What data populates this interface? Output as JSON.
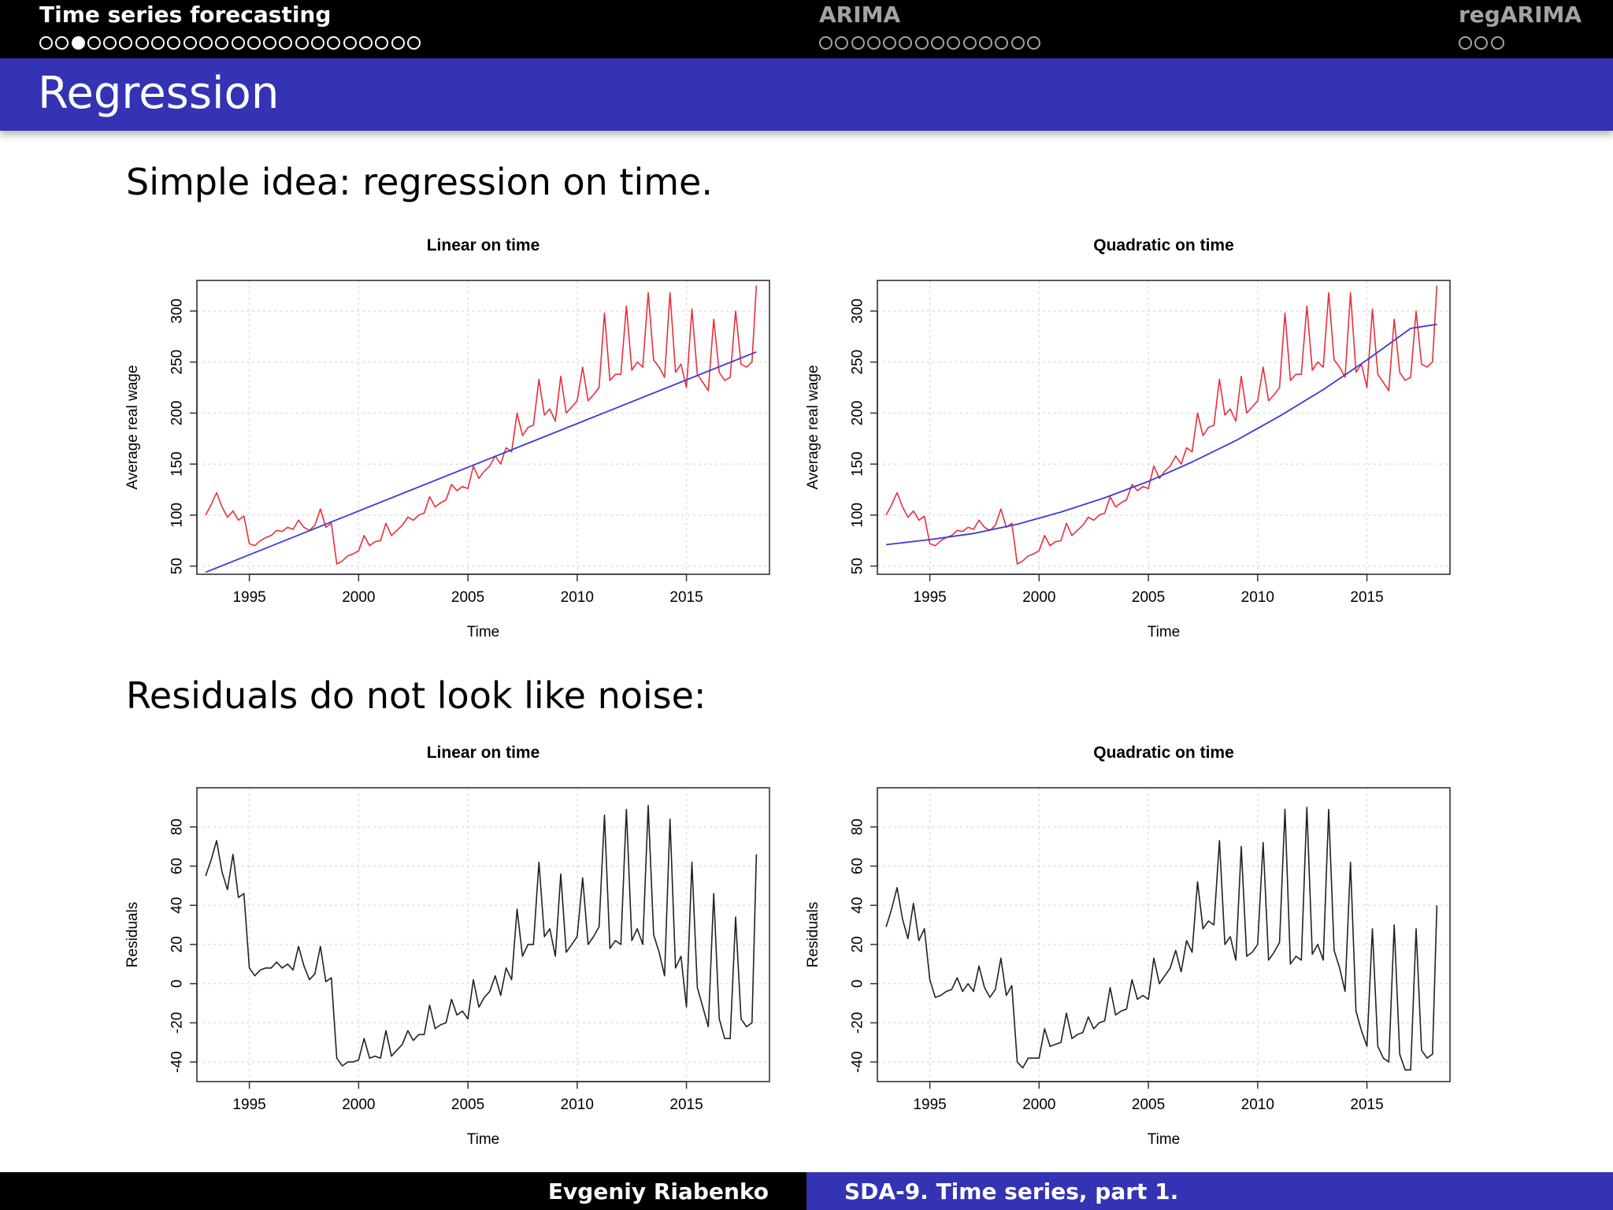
{
  "nav": {
    "sections": [
      {
        "title": "Time series forecasting",
        "dots": 24,
        "current": 2,
        "active": true
      },
      {
        "title": "ARIMA",
        "dots": 14,
        "current": -1,
        "active": false
      },
      {
        "title": "regARIMA",
        "dots": 3,
        "current": -1,
        "active": false
      }
    ]
  },
  "frame": {
    "title": "Regression"
  },
  "text": {
    "intro": "Simple idea: regression on time.",
    "residuals_heading": "Residuals do not look like noise:"
  },
  "footer": {
    "author": "Evgeniy Riabenko",
    "course": "SDA-9. Time series, part 1."
  },
  "colors": {
    "nav_bg": "#000000",
    "accent": "#3333b3",
    "series": "#e8303a",
    "fit": "#3b3bd6",
    "residual": "#222222"
  },
  "chart_data": [
    {
      "type": "line",
      "title": "Linear on time",
      "xlabel": "Time",
      "ylabel": "Average real wage",
      "xlim": [
        1992.6,
        2018.8
      ],
      "ylim": [
        42,
        330
      ],
      "xticks": [
        1995,
        2000,
        2005,
        2010,
        2015
      ],
      "yticks": [
        50,
        100,
        150,
        200,
        250,
        300
      ],
      "grid": true,
      "series": [
        {
          "role": "data",
          "color": "#e8303a",
          "x": [
            1993.0,
            1993.25,
            1993.5,
            1993.75,
            1994.0,
            1994.25,
            1994.5,
            1994.75,
            1995.0,
            1995.25,
            1995.5,
            1995.75,
            1996.0,
            1996.25,
            1996.5,
            1996.75,
            1997.0,
            1997.25,
            1997.5,
            1997.75,
            1998.0,
            1998.25,
            1998.5,
            1998.75,
            1999.0,
            1999.25,
            1999.5,
            1999.75,
            2000.0,
            2000.25,
            2000.5,
            2000.75,
            2001.0,
            2001.25,
            2001.5,
            2001.75,
            2002.0,
            2002.25,
            2002.5,
            2002.75,
            2003.0,
            2003.25,
            2003.5,
            2003.75,
            2004.0,
            2004.25,
            2004.5,
            2004.75,
            2005.0,
            2005.25,
            2005.5,
            2005.75,
            2006.0,
            2006.25,
            2006.5,
            2006.75,
            2007.0,
            2007.25,
            2007.5,
            2007.75,
            2008.0,
            2008.25,
            2008.5,
            2008.75,
            2009.0,
            2009.25,
            2009.5,
            2009.75,
            2010.0,
            2010.25,
            2010.5,
            2010.75,
            2011.0,
            2011.25,
            2011.5,
            2011.75,
            2012.0,
            2012.25,
            2012.5,
            2012.75,
            2013.0,
            2013.25,
            2013.5,
            2013.75,
            2014.0,
            2014.25,
            2014.5,
            2014.75,
            2015.0,
            2015.25,
            2015.5,
            2015.75,
            2016.0,
            2016.25,
            2016.5,
            2016.75,
            2017.0,
            2017.25,
            2017.5,
            2017.75,
            2018.0,
            2018.2
          ],
          "y": [
            100,
            110,
            122,
            108,
            98,
            104,
            95,
            99,
            72,
            70,
            75,
            78,
            80,
            85,
            84,
            88,
            86,
            95,
            88,
            85,
            90,
            106,
            88,
            92,
            52,
            55,
            60,
            62,
            65,
            80,
            70,
            74,
            75,
            92,
            80,
            85,
            90,
            98,
            95,
            100,
            102,
            118,
            108,
            112,
            115,
            130,
            124,
            128,
            126,
            148,
            136,
            143,
            148,
            158,
            150,
            166,
            162,
            200,
            178,
            186,
            188,
            233,
            198,
            204,
            192,
            236,
            200,
            206,
            212,
            245,
            212,
            218,
            225,
            298,
            232,
            238,
            238,
            305,
            242,
            250,
            245,
            318,
            252,
            245,
            235,
            318,
            240,
            248,
            225,
            302,
            238,
            230,
            222,
            292,
            240,
            232,
            235,
            300,
            248,
            245,
            250,
            325
          ]
        },
        {
          "role": "fit",
          "color": "#3b3bd6",
          "x": [
            1993.0,
            2018.2
          ],
          "y": [
            44,
            260
          ]
        }
      ]
    },
    {
      "type": "line",
      "title": "Quadratic on time",
      "xlabel": "Time",
      "ylabel": "Average real wage",
      "xlim": [
        1992.6,
        2018.8
      ],
      "ylim": [
        42,
        330
      ],
      "xticks": [
        1995,
        2000,
        2005,
        2010,
        2015
      ],
      "yticks": [
        50,
        100,
        150,
        200,
        250,
        300
      ],
      "grid": true,
      "series": [
        {
          "role": "data",
          "color": "#e8303a",
          "x": [
            1993.0,
            1993.25,
            1993.5,
            1993.75,
            1994.0,
            1994.25,
            1994.5,
            1994.75,
            1995.0,
            1995.25,
            1995.5,
            1995.75,
            1996.0,
            1996.25,
            1996.5,
            1996.75,
            1997.0,
            1997.25,
            1997.5,
            1997.75,
            1998.0,
            1998.25,
            1998.5,
            1998.75,
            1999.0,
            1999.25,
            1999.5,
            1999.75,
            2000.0,
            2000.25,
            2000.5,
            2000.75,
            2001.0,
            2001.25,
            2001.5,
            2001.75,
            2002.0,
            2002.25,
            2002.5,
            2002.75,
            2003.0,
            2003.25,
            2003.5,
            2003.75,
            2004.0,
            2004.25,
            2004.5,
            2004.75,
            2005.0,
            2005.25,
            2005.5,
            2005.75,
            2006.0,
            2006.25,
            2006.5,
            2006.75,
            2007.0,
            2007.25,
            2007.5,
            2007.75,
            2008.0,
            2008.25,
            2008.5,
            2008.75,
            2009.0,
            2009.25,
            2009.5,
            2009.75,
            2010.0,
            2010.25,
            2010.5,
            2010.75,
            2011.0,
            2011.25,
            2011.5,
            2011.75,
            2012.0,
            2012.25,
            2012.5,
            2012.75,
            2013.0,
            2013.25,
            2013.5,
            2013.75,
            2014.0,
            2014.25,
            2014.5,
            2014.75,
            2015.0,
            2015.25,
            2015.5,
            2015.75,
            2016.0,
            2016.25,
            2016.5,
            2016.75,
            2017.0,
            2017.25,
            2017.5,
            2017.75,
            2018.0,
            2018.2
          ],
          "y": [
            100,
            110,
            122,
            108,
            98,
            104,
            95,
            99,
            72,
            70,
            75,
            78,
            80,
            85,
            84,
            88,
            86,
            95,
            88,
            85,
            90,
            106,
            88,
            92,
            52,
            55,
            60,
            62,
            65,
            80,
            70,
            74,
            75,
            92,
            80,
            85,
            90,
            98,
            95,
            100,
            102,
            118,
            108,
            112,
            115,
            130,
            124,
            128,
            126,
            148,
            136,
            143,
            148,
            158,
            150,
            166,
            162,
            200,
            178,
            186,
            188,
            233,
            198,
            204,
            192,
            236,
            200,
            206,
            212,
            245,
            212,
            218,
            225,
            298,
            232,
            238,
            238,
            305,
            242,
            250,
            245,
            318,
            252,
            245,
            235,
            318,
            240,
            248,
            225,
            302,
            238,
            230,
            222,
            292,
            240,
            232,
            235,
            300,
            248,
            245,
            250,
            325
          ]
        },
        {
          "role": "fit",
          "color": "#3b3bd6",
          "x": [
            1993,
            1995,
            1997,
            1999,
            2001,
            2003,
            2005,
            2007,
            2009,
            2011,
            2013,
            2015,
            2017,
            2018.2
          ],
          "y": [
            71,
            76,
            82,
            91,
            103,
            117,
            133,
            152,
            173,
            197,
            223,
            252,
            283,
            287
          ]
        }
      ]
    },
    {
      "type": "line",
      "title": "Linear on time",
      "xlabel": "Time",
      "ylabel": "Residuals",
      "xlim": [
        1992.6,
        2018.8
      ],
      "ylim": [
        -50,
        100
      ],
      "xticks": [
        1995,
        2000,
        2005,
        2010,
        2015
      ],
      "yticks": [
        -40,
        -20,
        0,
        20,
        40,
        60,
        80
      ],
      "grid": true,
      "series": [
        {
          "role": "residual",
          "color": "#222222",
          "x": [
            1993.0,
            1993.25,
            1993.5,
            1993.75,
            1994.0,
            1994.25,
            1994.5,
            1994.75,
            1995.0,
            1995.25,
            1995.5,
            1995.75,
            1996.0,
            1996.25,
            1996.5,
            1996.75,
            1997.0,
            1997.25,
            1997.5,
            1997.75,
            1998.0,
            1998.25,
            1998.5,
            1998.75,
            1999.0,
            1999.25,
            1999.5,
            1999.75,
            2000.0,
            2000.25,
            2000.5,
            2000.75,
            2001.0,
            2001.25,
            2001.5,
            2001.75,
            2002.0,
            2002.25,
            2002.5,
            2002.75,
            2003.0,
            2003.25,
            2003.5,
            2003.75,
            2004.0,
            2004.25,
            2004.5,
            2004.75,
            2005.0,
            2005.25,
            2005.5,
            2005.75,
            2006.0,
            2006.25,
            2006.5,
            2006.75,
            2007.0,
            2007.25,
            2007.5,
            2007.75,
            2008.0,
            2008.25,
            2008.5,
            2008.75,
            2009.0,
            2009.25,
            2009.5,
            2009.75,
            2010.0,
            2010.25,
            2010.5,
            2010.75,
            2011.0,
            2011.25,
            2011.5,
            2011.75,
            2012.0,
            2012.25,
            2012.5,
            2012.75,
            2013.0,
            2013.25,
            2013.5,
            2013.75,
            2014.0,
            2014.25,
            2014.5,
            2014.75,
            2015.0,
            2015.25,
            2015.5,
            2015.75,
            2016.0,
            2016.25,
            2016.5,
            2016.75,
            2017.0,
            2017.25,
            2017.5,
            2017.75,
            2018.0,
            2018.2
          ],
          "y": [
            55,
            63,
            73,
            57,
            48,
            66,
            44,
            46,
            8,
            4,
            7,
            8,
            8,
            11,
            8,
            10,
            7,
            19,
            9,
            2,
            5,
            19,
            1,
            3,
            -38,
            -42,
            -40,
            -40,
            -39,
            -28,
            -38,
            -37,
            -38,
            -24,
            -37,
            -34,
            -31,
            -24,
            -29,
            -26,
            -26,
            -11,
            -23,
            -21,
            -20,
            -8,
            -16,
            -14,
            -18,
            2,
            -12,
            -7,
            -4,
            4,
            -6,
            8,
            2,
            38,
            14,
            20,
            20,
            62,
            24,
            28,
            14,
            56,
            16,
            20,
            24,
            54,
            20,
            24,
            29,
            86,
            18,
            22,
            20,
            89,
            22,
            28,
            20,
            91,
            25,
            16,
            4,
            84,
            8,
            14,
            -12,
            62,
            -2,
            -12,
            -22,
            46,
            -18,
            -28,
            -28,
            34,
            -18,
            -22,
            -20,
            66
          ]
        }
      ]
    },
    {
      "type": "line",
      "title": "Quadratic on time",
      "xlabel": "Time",
      "ylabel": "Residuals",
      "xlim": [
        1992.6,
        2018.8
      ],
      "ylim": [
        -50,
        100
      ],
      "xticks": [
        1995,
        2000,
        2005,
        2010,
        2015
      ],
      "yticks": [
        -40,
        -20,
        0,
        20,
        40,
        60,
        80
      ],
      "grid": true,
      "series": [
        {
          "role": "residual",
          "color": "#222222",
          "x": [
            1993.0,
            1993.25,
            1993.5,
            1993.75,
            1994.0,
            1994.25,
            1994.5,
            1994.75,
            1995.0,
            1995.25,
            1995.5,
            1995.75,
            1996.0,
            1996.25,
            1996.5,
            1996.75,
            1997.0,
            1997.25,
            1997.5,
            1997.75,
            1998.0,
            1998.25,
            1998.5,
            1998.75,
            1999.0,
            1999.25,
            1999.5,
            1999.75,
            2000.0,
            2000.25,
            2000.5,
            2000.75,
            2001.0,
            2001.25,
            2001.5,
            2001.75,
            2002.0,
            2002.25,
            2002.5,
            2002.75,
            2003.0,
            2003.25,
            2003.5,
            2003.75,
            2004.0,
            2004.25,
            2004.5,
            2004.75,
            2005.0,
            2005.25,
            2005.5,
            2005.75,
            2006.0,
            2006.25,
            2006.5,
            2006.75,
            2007.0,
            2007.25,
            2007.5,
            2007.75,
            2008.0,
            2008.25,
            2008.5,
            2008.75,
            2009.0,
            2009.25,
            2009.5,
            2009.75,
            2010.0,
            2010.25,
            2010.5,
            2010.75,
            2011.0,
            2011.25,
            2011.5,
            2011.75,
            2012.0,
            2012.25,
            2012.5,
            2012.75,
            2013.0,
            2013.25,
            2013.5,
            2013.75,
            2014.0,
            2014.25,
            2014.5,
            2014.75,
            2015.0,
            2015.25,
            2015.5,
            2015.75,
            2016.0,
            2016.25,
            2016.5,
            2016.75,
            2017.0,
            2017.25,
            2017.5,
            2017.75,
            2018.0,
            2018.2
          ],
          "y": [
            29,
            38,
            49,
            33,
            23,
            41,
            22,
            28,
            2,
            -7,
            -6,
            -4,
            -3,
            3,
            -4,
            0,
            -4,
            9,
            -2,
            -7,
            -3,
            13,
            -6,
            -1,
            -40,
            -43,
            -38,
            -38,
            -38,
            -23,
            -32,
            -31,
            -30,
            -15,
            -28,
            -26,
            -25,
            -17,
            -23,
            -20,
            -19,
            -2,
            -16,
            -14,
            -13,
            2,
            -8,
            -6,
            -8,
            13,
            0,
            4,
            8,
            17,
            6,
            22,
            16,
            52,
            28,
            32,
            30,
            73,
            20,
            24,
            12,
            70,
            14,
            16,
            20,
            72,
            12,
            16,
            21,
            89,
            10,
            14,
            12,
            90,
            15,
            20,
            12,
            89,
            17,
            8,
            -4,
            62,
            -14,
            -24,
            -32,
            28,
            -32,
            -38,
            -40,
            30,
            -36,
            -44,
            -44,
            28,
            -34,
            -38,
            -36,
            40
          ]
        }
      ]
    }
  ]
}
